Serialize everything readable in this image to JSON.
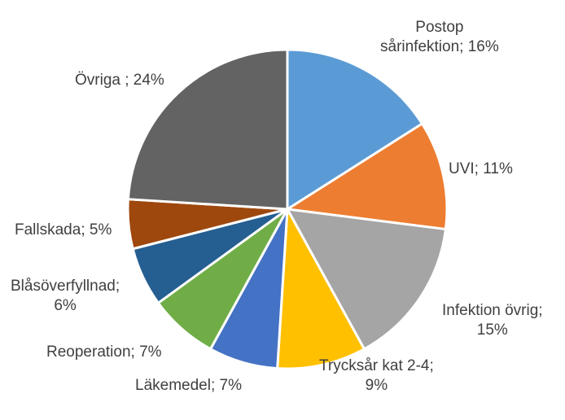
{
  "chart_data": {
    "type": "pie",
    "title": "",
    "slices": [
      {
        "label_lines": [
          "Postop",
          "sårinfektion; 16%"
        ],
        "category": "Postop sårinfektion",
        "value": 16,
        "color": "#5B9BD5"
      },
      {
        "label_lines": [
          "UVI; 11%"
        ],
        "category": "UVI",
        "value": 11,
        "color": "#ED7D31"
      },
      {
        "label_lines": [
          "Infektion övrig;",
          "15%"
        ],
        "category": "Infektion övrig",
        "value": 15,
        "color": "#A5A5A5"
      },
      {
        "label_lines": [
          "Trycksår kat 2-4;",
          "9%"
        ],
        "category": "Trycksår kat 2-4",
        "value": 9,
        "color": "#FFC000"
      },
      {
        "label_lines": [
          "Läkemedel; 7%"
        ],
        "category": "Läkemedel",
        "value": 7,
        "color": "#4472C4"
      },
      {
        "label_lines": [
          "Reoperation; 7%"
        ],
        "category": "Reoperation",
        "value": 7,
        "color": "#70AD47"
      },
      {
        "label_lines": [
          "Blåsöverfyllnad;",
          "6%"
        ],
        "category": "Blåsöverfyllnad",
        "value": 6,
        "color": "#255E91"
      },
      {
        "label_lines": [
          "Fallskada; 5%"
        ],
        "category": "Fallskada",
        "value": 5,
        "color": "#9E480E"
      },
      {
        "label_lines": [
          "Övriga ; 24%"
        ],
        "category": "Övriga",
        "value": 24,
        "color": "#636363"
      }
    ]
  }
}
